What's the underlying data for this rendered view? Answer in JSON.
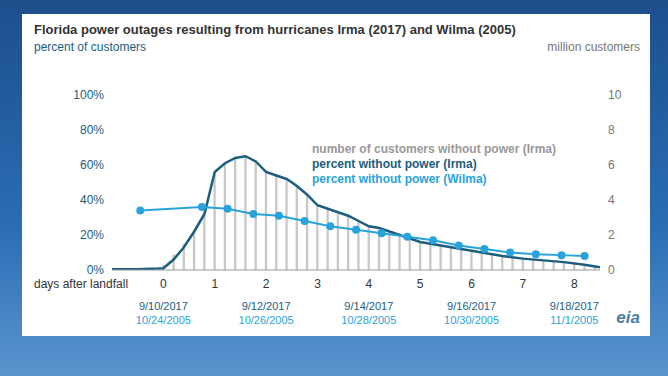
{
  "chart_data": {
    "type": "combo",
    "title": "Florida power outages resulting from hurricanes Irma (2017) and Wilma (2005)",
    "y_label": "percent of customers",
    "y2_label": "million customers",
    "x_label": "days after landfall",
    "xlim": [
      -1,
      8.5
    ],
    "xticks": [
      0,
      1,
      2,
      3,
      4,
      5,
      6,
      7,
      8
    ],
    "ylim": [
      0,
      100
    ],
    "yticks": [
      {
        "value": 0,
        "label": "0%"
      },
      {
        "value": 20,
        "label": "20%"
      },
      {
        "value": 40,
        "label": "40%"
      },
      {
        "value": 60,
        "label": "60%"
      },
      {
        "value": 80,
        "label": "80%"
      },
      {
        "value": 100,
        "label": "100%"
      }
    ],
    "y2lim": [
      0,
      10
    ],
    "y2ticks": [
      0,
      2,
      4,
      6,
      8,
      10
    ],
    "date_labels": [
      {
        "value": 0,
        "labels": [
          "9/10/2017",
          "10/24/2005"
        ]
      },
      {
        "value": 2,
        "labels": [
          "9/12/2017",
          "10/26/2005"
        ]
      },
      {
        "value": 4,
        "labels": [
          "9/14/2017",
          "10/28/2005"
        ]
      },
      {
        "value": 6,
        "labels": [
          "9/16/2017",
          "10/30/2005"
        ]
      },
      {
        "value": 8,
        "labels": [
          "9/18/2017",
          "11/1/2005"
        ]
      }
    ],
    "grid": false,
    "source": "eia",
    "series": [
      {
        "name": "number of customers without power (Irma)",
        "type": "bar",
        "axis": "y2",
        "color": "#c8c8c8",
        "x": [
          0,
          0.2,
          0.4,
          0.6,
          0.8,
          1.0,
          1.2,
          1.4,
          1.6,
          1.8,
          2.0,
          2.2,
          2.4,
          2.6,
          2.8,
          3.0,
          3.2,
          3.4,
          3.6,
          3.8,
          4.0,
          4.2,
          4.4,
          4.6,
          4.8,
          5.0,
          5.2,
          5.4,
          5.6,
          5.8,
          6.0,
          6.2,
          6.4,
          6.6,
          6.8,
          7.0,
          7.2,
          7.4,
          7.6,
          7.8,
          8.0,
          8.2,
          8.4
        ],
        "values": [
          0.3,
          0.9,
          1.5,
          2.3,
          3.2,
          5.6,
          6.1,
          6.4,
          6.5,
          6.2,
          5.6,
          5.4,
          5.1,
          4.8,
          4.3,
          3.7,
          3.5,
          3.3,
          3.1,
          2.8,
          2.5,
          2.3,
          2.1,
          2.0,
          1.8,
          1.6,
          1.5,
          1.4,
          1.3,
          1.2,
          1.1,
          1.0,
          0.9,
          0.8,
          0.7,
          0.6,
          0.6,
          0.5,
          0.5,
          0.4,
          0.4,
          0.3,
          0.2
        ]
      },
      {
        "name": "percent without power (Irma)",
        "type": "line",
        "axis": "y",
        "color": "#1b5e7e",
        "marker": "none",
        "x": [
          -1,
          -0.5,
          -0.1,
          0,
          0.2,
          0.4,
          0.6,
          0.8,
          1.0,
          1.2,
          1.4,
          1.6,
          1.8,
          2.0,
          2.2,
          2.4,
          2.6,
          2.8,
          3.0,
          3.2,
          3.4,
          3.6,
          3.8,
          4.0,
          4.2,
          4.4,
          4.6,
          4.8,
          5.0,
          5.4,
          5.8,
          6.2,
          6.6,
          7.0,
          7.4,
          7.8,
          8.2,
          8.5
        ],
        "values": [
          0.5,
          0.5,
          0.8,
          1,
          6,
          13,
          22,
          32,
          56,
          61,
          64,
          65,
          62,
          56,
          54,
          52,
          48,
          43,
          37,
          35,
          33,
          31,
          28,
          25,
          24,
          22,
          20,
          18,
          16,
          14,
          12,
          10,
          8,
          6.5,
          5.5,
          4.5,
          3,
          1.5
        ]
      },
      {
        "name": "percent without power (Wilma)",
        "type": "line",
        "axis": "y",
        "color": "#29a3dc",
        "marker": "circle",
        "x": [
          -0.45,
          0.75,
          1.25,
          1.75,
          2.25,
          2.75,
          3.25,
          3.75,
          4.25,
          4.75,
          5.25,
          5.75,
          6.25,
          6.75,
          7.25,
          7.75,
          8.2
        ],
        "values": [
          34,
          36,
          35,
          32,
          31,
          28,
          25,
          23,
          21,
          19,
          17,
          14,
          12,
          10,
          9,
          8.5,
          8
        ]
      }
    ]
  }
}
